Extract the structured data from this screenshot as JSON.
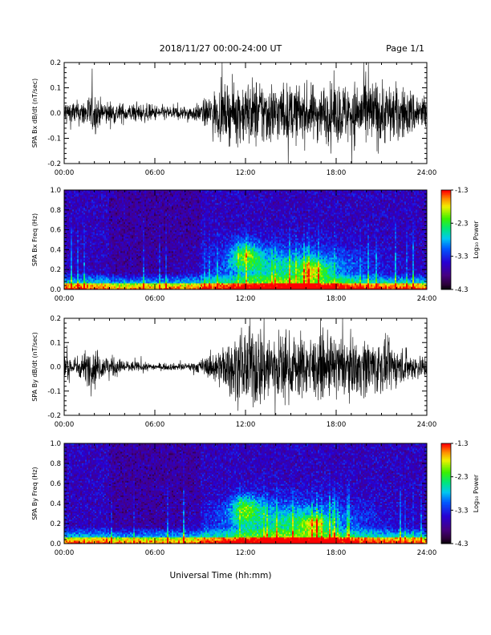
{
  "header": {
    "title": "2018/11/27  00:00-24:00 UT",
    "page": "Page 1/1"
  },
  "xlabel": "Universal Time (hh:mm)",
  "chart_data": [
    {
      "type": "line",
      "ylabel": "SPA Bx dB/dt (nT/sec)",
      "xlim": [
        0,
        24
      ],
      "ylim": [
        -0.2,
        0.2
      ],
      "xticks": [
        "00:00",
        "06:00",
        "12:00",
        "18:00",
        "24:00"
      ],
      "yticks": [
        "-0.2",
        "-0.1",
        "0.0",
        "0.1",
        "0.2"
      ],
      "envelope": {
        "hours": [
          0,
          1,
          2,
          2.3,
          3,
          4,
          5,
          6,
          7,
          8,
          9,
          10,
          11,
          12,
          13,
          14,
          15,
          16,
          17,
          18,
          19,
          20,
          21,
          22,
          23,
          24
        ],
        "amplitude": [
          0.06,
          0.05,
          0.09,
          0.06,
          0.05,
          0.04,
          0.04,
          0.035,
          0.03,
          0.03,
          0.04,
          0.1,
          0.12,
          0.14,
          0.15,
          0.13,
          0.12,
          0.12,
          0.12,
          0.13,
          0.13,
          0.15,
          0.14,
          0.12,
          0.1,
          0.08
        ]
      }
    },
    {
      "type": "heatmap",
      "ylabel": "SPA Bx Freq (Hz)",
      "colorbar_label": "Log₁₀ Power",
      "colorbar_ticks": [
        "-1.3",
        "-2.3",
        "-3.3",
        "-4.3"
      ],
      "crange": [
        -4.3,
        -1.3
      ],
      "xlim": [
        0,
        24
      ],
      "ylim": [
        0,
        1.0
      ],
      "xticks": [
        "00:00",
        "06:00",
        "12:00",
        "18:00",
        "24:00"
      ],
      "yticks": [
        "0.0",
        "0.2",
        "0.4",
        "0.6",
        "0.8",
        "1.0"
      ]
    },
    {
      "type": "line",
      "ylabel": "SPA By dB/dt (nT/sec)",
      "xlim": [
        0,
        24
      ],
      "ylim": [
        -0.2,
        0.2
      ],
      "xticks": [
        "00:00",
        "06:00",
        "12:00",
        "18:00",
        "24:00"
      ],
      "yticks": [
        "-0.2",
        "-0.1",
        "0.0",
        "0.1",
        "0.2"
      ],
      "envelope": {
        "hours": [
          0,
          1,
          2,
          2.3,
          3,
          4,
          5,
          6,
          7,
          8,
          9,
          10,
          11,
          12,
          13,
          14,
          15,
          16,
          17,
          18,
          19,
          20,
          21,
          22,
          23,
          24
        ],
        "amplitude": [
          0.05,
          0.05,
          0.1,
          0.06,
          0.05,
          0.03,
          0.02,
          0.015,
          0.015,
          0.015,
          0.03,
          0.07,
          0.12,
          0.18,
          0.19,
          0.16,
          0.14,
          0.14,
          0.13,
          0.14,
          0.12,
          0.13,
          0.12,
          0.09,
          0.06,
          0.05
        ]
      }
    },
    {
      "type": "heatmap",
      "ylabel": "SPA By Freq (Hz)",
      "colorbar_label": "Log₁₀ Power",
      "colorbar_ticks": [
        "-1.3",
        "-2.3",
        "-3.3",
        "-4.3"
      ],
      "crange": [
        -4.3,
        -1.3
      ],
      "xlim": [
        0,
        24
      ],
      "ylim": [
        0,
        1.0
      ],
      "xticks": [
        "00:00",
        "06:00",
        "12:00",
        "18:00",
        "24:00"
      ],
      "yticks": [
        "0.0",
        "0.2",
        "0.4",
        "0.6",
        "0.8",
        "1.0"
      ]
    }
  ]
}
